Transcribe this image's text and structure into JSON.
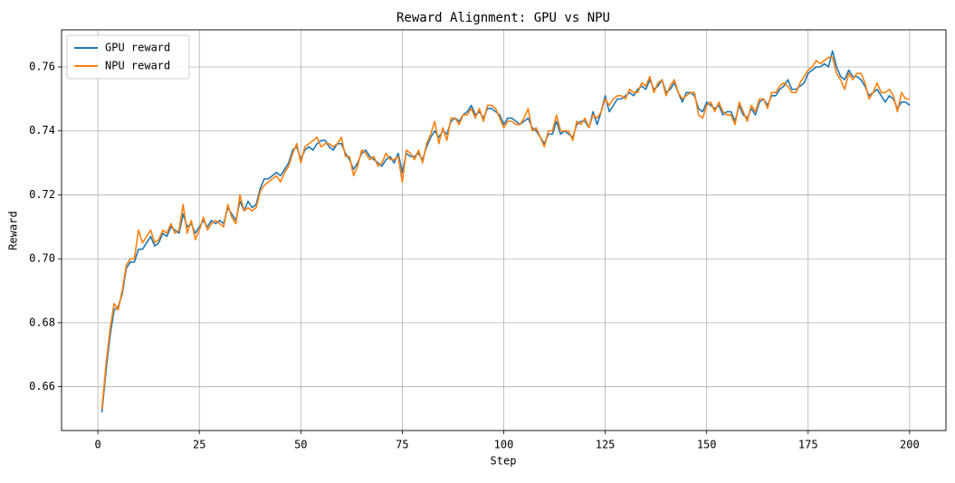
{
  "chart_data": {
    "type": "line",
    "title": "Reward Alignment: GPU vs NPU",
    "xlabel": "Step",
    "ylabel": "Reward",
    "x": [
      1,
      2,
      3,
      4,
      5,
      6,
      7,
      8,
      9,
      10,
      11,
      12,
      13,
      14,
      15,
      16,
      17,
      18,
      19,
      20,
      21,
      22,
      23,
      24,
      25,
      26,
      27,
      28,
      29,
      30,
      31,
      32,
      33,
      34,
      35,
      36,
      37,
      38,
      39,
      40,
      41,
      42,
      43,
      44,
      45,
      46,
      47,
      48,
      49,
      50,
      51,
      52,
      53,
      54,
      55,
      56,
      57,
      58,
      59,
      60,
      61,
      62,
      63,
      64,
      65,
      66,
      67,
      68,
      69,
      70,
      71,
      72,
      73,
      74,
      75,
      76,
      77,
      78,
      79,
      80,
      81,
      82,
      83,
      84,
      85,
      86,
      87,
      88,
      89,
      90,
      91,
      92,
      93,
      94,
      95,
      96,
      97,
      98,
      99,
      100,
      101,
      102,
      103,
      104,
      105,
      106,
      107,
      108,
      109,
      110,
      111,
      112,
      113,
      114,
      115,
      116,
      117,
      118,
      119,
      120,
      121,
      122,
      123,
      124,
      125,
      126,
      127,
      128,
      129,
      130,
      131,
      132,
      133,
      134,
      135,
      136,
      137,
      138,
      139,
      140,
      141,
      142,
      143,
      144,
      145,
      146,
      147,
      148,
      149,
      150,
      151,
      152,
      153,
      154,
      155,
      156,
      157,
      158,
      159,
      160,
      161,
      162,
      163,
      164,
      165,
      166,
      167,
      168,
      169,
      170,
      171,
      172,
      173,
      174,
      175,
      176,
      177,
      178,
      179,
      180,
      181,
      182,
      183,
      184,
      185,
      186,
      187,
      188,
      189,
      190,
      191,
      192,
      193,
      194,
      195,
      196,
      197,
      198,
      199,
      200
    ],
    "series": [
      {
        "name": "GPU reward",
        "color": "#1f77b4",
        "values": [
          0.652,
          0.665,
          0.676,
          0.684,
          0.685,
          0.689,
          0.697,
          0.699,
          0.699,
          0.703,
          0.703,
          0.705,
          0.707,
          0.704,
          0.705,
          0.708,
          0.707,
          0.71,
          0.709,
          0.708,
          0.714,
          0.71,
          0.711,
          0.708,
          0.71,
          0.712,
          0.71,
          0.712,
          0.711,
          0.712,
          0.711,
          0.716,
          0.714,
          0.712,
          0.718,
          0.715,
          0.718,
          0.716,
          0.717,
          0.722,
          0.725,
          0.725,
          0.726,
          0.727,
          0.726,
          0.728,
          0.73,
          0.734,
          0.735,
          0.731,
          0.734,
          0.735,
          0.734,
          0.736,
          0.737,
          0.737,
          0.735,
          0.734,
          0.736,
          0.736,
          0.733,
          0.731,
          0.728,
          0.73,
          0.733,
          0.734,
          0.732,
          0.731,
          0.73,
          0.729,
          0.731,
          0.732,
          0.73,
          0.733,
          0.727,
          0.733,
          0.732,
          0.732,
          0.733,
          0.731,
          0.735,
          0.738,
          0.74,
          0.738,
          0.74,
          0.739,
          0.743,
          0.744,
          0.743,
          0.745,
          0.746,
          0.748,
          0.745,
          0.746,
          0.744,
          0.747,
          0.747,
          0.746,
          0.745,
          0.742,
          0.744,
          0.744,
          0.743,
          0.742,
          0.743,
          0.744,
          0.741,
          0.74,
          0.738,
          0.736,
          0.739,
          0.739,
          0.743,
          0.739,
          0.74,
          0.739,
          0.738,
          0.742,
          0.743,
          0.743,
          0.741,
          0.746,
          0.742,
          0.746,
          0.751,
          0.746,
          0.748,
          0.75,
          0.75,
          0.751,
          0.752,
          0.751,
          0.753,
          0.754,
          0.753,
          0.756,
          0.753,
          0.754,
          0.756,
          0.752,
          0.753,
          0.755,
          0.752,
          0.749,
          0.752,
          0.752,
          0.751,
          0.747,
          0.746,
          0.749,
          0.748,
          0.747,
          0.748,
          0.745,
          0.746,
          0.746,
          0.743,
          0.748,
          0.745,
          0.744,
          0.747,
          0.745,
          0.749,
          0.75,
          0.748,
          0.751,
          0.751,
          0.753,
          0.754,
          0.756,
          0.753,
          0.753,
          0.754,
          0.755,
          0.758,
          0.759,
          0.76,
          0.76,
          0.761,
          0.76,
          0.765,
          0.76,
          0.757,
          0.756,
          0.759,
          0.757,
          0.757,
          0.756,
          0.754,
          0.751,
          0.752,
          0.753,
          0.751,
          0.749,
          0.751,
          0.75,
          0.747,
          0.749,
          0.749,
          0.748
        ]
      },
      {
        "name": "NPU reward",
        "color": "#ff7f0e",
        "values": [
          0.653,
          0.667,
          0.678,
          0.686,
          0.684,
          0.69,
          0.698,
          0.7,
          0.7,
          0.709,
          0.705,
          0.707,
          0.709,
          0.705,
          0.706,
          0.709,
          0.708,
          0.711,
          0.708,
          0.709,
          0.717,
          0.708,
          0.712,
          0.706,
          0.709,
          0.713,
          0.709,
          0.711,
          0.712,
          0.711,
          0.71,
          0.717,
          0.713,
          0.711,
          0.72,
          0.715,
          0.716,
          0.715,
          0.716,
          0.721,
          0.723,
          0.724,
          0.725,
          0.726,
          0.724,
          0.727,
          0.729,
          0.733,
          0.736,
          0.73,
          0.735,
          0.736,
          0.737,
          0.738,
          0.735,
          0.736,
          0.736,
          0.735,
          0.736,
          0.738,
          0.732,
          0.732,
          0.726,
          0.729,
          0.734,
          0.733,
          0.731,
          0.732,
          0.729,
          0.73,
          0.733,
          0.731,
          0.731,
          0.732,
          0.724,
          0.734,
          0.733,
          0.731,
          0.734,
          0.73,
          0.736,
          0.739,
          0.743,
          0.736,
          0.741,
          0.737,
          0.744,
          0.744,
          0.742,
          0.745,
          0.745,
          0.747,
          0.744,
          0.747,
          0.743,
          0.748,
          0.748,
          0.747,
          0.744,
          0.741,
          0.743,
          0.743,
          0.742,
          0.742,
          0.744,
          0.747,
          0.74,
          0.741,
          0.738,
          0.735,
          0.74,
          0.74,
          0.745,
          0.74,
          0.74,
          0.74,
          0.737,
          0.743,
          0.742,
          0.744,
          0.741,
          0.745,
          0.744,
          0.746,
          0.75,
          0.748,
          0.75,
          0.751,
          0.751,
          0.75,
          0.753,
          0.752,
          0.752,
          0.755,
          0.754,
          0.757,
          0.752,
          0.755,
          0.756,
          0.751,
          0.754,
          0.756,
          0.752,
          0.75,
          0.751,
          0.752,
          0.752,
          0.745,
          0.744,
          0.748,
          0.749,
          0.746,
          0.749,
          0.746,
          0.745,
          0.745,
          0.742,
          0.749,
          0.746,
          0.743,
          0.748,
          0.746,
          0.75,
          0.75,
          0.747,
          0.752,
          0.752,
          0.754,
          0.755,
          0.754,
          0.752,
          0.752,
          0.755,
          0.757,
          0.759,
          0.76,
          0.762,
          0.761,
          0.762,
          0.763,
          0.763,
          0.758,
          0.756,
          0.753,
          0.758,
          0.756,
          0.758,
          0.758,
          0.755,
          0.75,
          0.752,
          0.755,
          0.752,
          0.752,
          0.753,
          0.751,
          0.746,
          0.752,
          0.75,
          0.75
        ]
      }
    ],
    "xlim": [
      -8.95,
      208.95
    ],
    "xticks": [
      0,
      25,
      50,
      75,
      100,
      125,
      150,
      175,
      200
    ],
    "ylim": [
      0.6463,
      0.7716
    ],
    "yticks": [
      0.66,
      0.68,
      {
        "value": 0.7,
        "label": "0.70"
      },
      0.72,
      0.74,
      0.76
    ],
    "grid": true,
    "legend": "upper left"
  }
}
